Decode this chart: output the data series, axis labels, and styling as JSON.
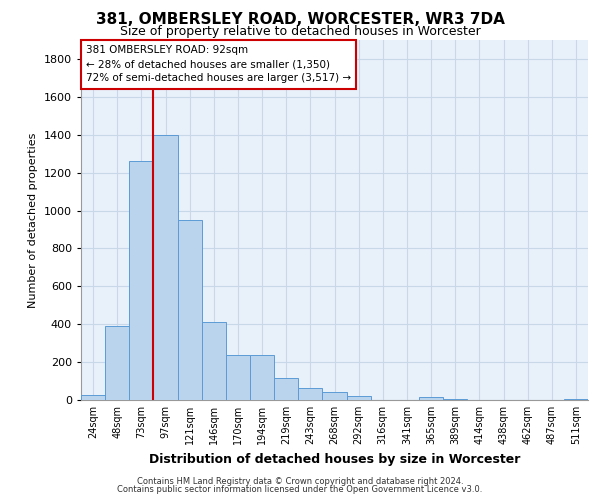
{
  "title_line1": "381, OMBERSLEY ROAD, WORCESTER, WR3 7DA",
  "title_line2": "Size of property relative to detached houses in Worcester",
  "xlabel": "Distribution of detached houses by size in Worcester",
  "ylabel": "Number of detached properties",
  "footer_line1": "Contains HM Land Registry data © Crown copyright and database right 2024.",
  "footer_line2": "Contains public sector information licensed under the Open Government Licence v3.0.",
  "bin_labels": [
    "24sqm",
    "48sqm",
    "73sqm",
    "97sqm",
    "121sqm",
    "146sqm",
    "170sqm",
    "194sqm",
    "219sqm",
    "243sqm",
    "268sqm",
    "292sqm",
    "316sqm",
    "341sqm",
    "365sqm",
    "389sqm",
    "414sqm",
    "438sqm",
    "462sqm",
    "487sqm",
    "511sqm"
  ],
  "bar_values": [
    25,
    390,
    1260,
    1400,
    950,
    410,
    235,
    235,
    115,
    65,
    40,
    20,
    0,
    0,
    15,
    5,
    0,
    0,
    0,
    0,
    5
  ],
  "bar_color": "#bad4ee",
  "bar_edge_color": "#5b9bd5",
  "grid_color": "#c8d8e8",
  "background_color": "#e8f0fa",
  "annotation_text": "381 OMBERSLEY ROAD: 92sqm\n← 28% of detached houses are smaller (1,350)\n72% of semi-detached houses are larger (3,517) →",
  "annotation_box_facecolor": "#ffffff",
  "annotation_box_edgecolor": "#cc0000",
  "vline_color": "#cc0000",
  "vline_bar_index": 3,
  "ylim": [
    0,
    1900
  ],
  "yticks": [
    0,
    200,
    400,
    600,
    800,
    1000,
    1200,
    1400,
    1600,
    1800
  ]
}
